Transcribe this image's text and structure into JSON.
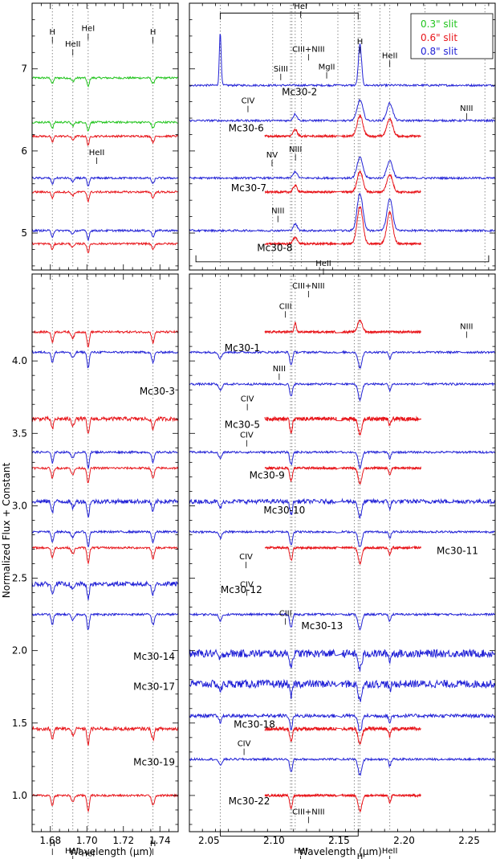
{
  "chart_data": {
    "type": "line",
    "description": "Multi-panel near-infrared spectra (normalized flux + constant vs wavelength) of Mc30 stars, two wavelength windows (H band left, K band right), upper and lower sets.",
    "shared": {
      "xlabel": "Wavelength (μm)",
      "ylabel": "Normalized Flux + Constant",
      "left_xlim": [
        1.67,
        1.75
      ],
      "right_xlim": [
        2.035,
        2.27
      ],
      "left_xticks": [
        "1.68",
        "1.70",
        "1.72",
        "1.74"
      ],
      "right_xticks": [
        "2.05",
        "2.10",
        "2.15",
        "2.20",
        "2.25"
      ],
      "upper_ylim": [
        4.55,
        7.8
      ],
      "upper_yticks": [
        "5",
        "6",
        "7"
      ],
      "lower_ylim": [
        0.75,
        4.6
      ],
      "lower_yticks": [
        "1.0",
        "1.5",
        "2.0",
        "2.5",
        "3.0",
        "3.5",
        "4.0"
      ]
    },
    "legend": [
      {
        "label": "0.3\" slit",
        "color": "#22c41e"
      },
      {
        "label": "0.6\" slit",
        "color": "#e8161b"
      },
      {
        "label": "0.8\" slit",
        "color": "#2222d6"
      }
    ],
    "line_markers_left": [
      1.6811,
      1.6923,
      1.7007,
      1.7362
    ],
    "line_markers_right": [
      2.0587,
      2.1127,
      2.1138,
      2.1163,
      2.1617,
      2.1647,
      2.1661,
      2.189
    ],
    "line_markers_right_upper_extra": [
      2.099,
      2.121,
      2.1491,
      2.1814,
      2.2161,
      2.2621
    ],
    "upper_series": [
      {
        "name": "Mc30-2",
        "color": "green",
        "level": 6.89,
        "left": true,
        "right": false
      },
      {
        "name": "Mc30-2",
        "color": "blue",
        "level": 6.8,
        "left": false,
        "right": true
      },
      {
        "name": "Mc30-6",
        "color": "green",
        "level": 6.35,
        "left": true,
        "right": false
      },
      {
        "name": "Mc30-6",
        "color": "red",
        "level": 6.18,
        "left": true,
        "right": true
      },
      {
        "name": "Mc30-6",
        "color": "blue",
        "level": 6.37,
        "left": false,
        "right": true
      },
      {
        "name": "Mc30-7",
        "color": "blue",
        "level": 5.67,
        "left": true,
        "right": true
      },
      {
        "name": "Mc30-7",
        "color": "red",
        "level": 5.5,
        "left": true,
        "right": true
      },
      {
        "name": "Mc30-8",
        "color": "blue",
        "level": 5.03,
        "left": true,
        "right": true
      },
      {
        "name": "Mc30-8",
        "color": "red",
        "level": 4.87,
        "left": true,
        "right": true
      }
    ],
    "lower_series": [
      {
        "name": "Mc30-1",
        "color": "red",
        "level": 4.2,
        "left": true,
        "right": true
      },
      {
        "name": "Mc30-1",
        "color": "blue",
        "level": 4.06,
        "left": true,
        "right": true
      },
      {
        "name": "Mc30-3",
        "color": "blue",
        "level": 3.84,
        "left": false,
        "right": true
      },
      {
        "name": "Mc30-5",
        "color": "red",
        "level": 3.6,
        "left": true,
        "right": true
      },
      {
        "name": "Mc30-9",
        "color": "blue",
        "level": 3.37,
        "left": true,
        "right": true
      },
      {
        "name": "Mc30-9",
        "color": "red",
        "level": 3.26,
        "left": true,
        "right": true
      },
      {
        "name": "Mc30-10",
        "color": "blue",
        "level": 3.03,
        "left": true,
        "right": true
      },
      {
        "name": "Mc30-11",
        "color": "blue",
        "level": 2.82,
        "left": true,
        "right": true
      },
      {
        "name": "Mc30-11",
        "color": "red",
        "level": 2.71,
        "left": true,
        "right": true
      },
      {
        "name": "Mc30-12",
        "color": "blue",
        "level": 2.46,
        "left": true,
        "right": false
      },
      {
        "name": "Mc30-13",
        "color": "blue",
        "level": 2.25,
        "left": true,
        "right": true
      },
      {
        "name": "Mc30-14",
        "color": "blue",
        "level": 1.98,
        "left": false,
        "right": true
      },
      {
        "name": "Mc30-17",
        "color": "blue",
        "level": 1.77,
        "left": false,
        "right": true
      },
      {
        "name": "Mc30-18",
        "color": "blue",
        "level": 1.55,
        "left": false,
        "right": true
      },
      {
        "name": "Mc30-18",
        "color": "red",
        "level": 1.46,
        "left": true,
        "right": true
      },
      {
        "name": "Mc30-19",
        "color": "blue",
        "level": 1.25,
        "left": false,
        "right": true
      },
      {
        "name": "Mc30-22",
        "color": "red",
        "level": 1.0,
        "left": true,
        "right": true
      }
    ],
    "star_labels": [
      {
        "text": "Mc30-2",
        "panel": "UR",
        "x": 2.106,
        "y": 6.72
      },
      {
        "text": "Mc30-6",
        "panel": "UR",
        "x": 2.065,
        "y": 6.28
      },
      {
        "text": "Mc30-7",
        "panel": "UR",
        "x": 2.067,
        "y": 5.55
      },
      {
        "text": "Mc30-8",
        "panel": "UR",
        "x": 2.087,
        "y": 4.82
      },
      {
        "text": "Mc30-1",
        "panel": "LR",
        "x": 2.062,
        "y": 4.09
      },
      {
        "text": "Mc30-3",
        "panel": "LL",
        "x": 1.745,
        "y": 3.79
      },
      {
        "text": "Mc30-5",
        "panel": "LR",
        "x": 2.062,
        "y": 3.56
      },
      {
        "text": "Mc30-9",
        "panel": "LR",
        "x": 2.081,
        "y": 3.21
      },
      {
        "text": "Mc30-10",
        "panel": "LR",
        "x": 2.092,
        "y": 2.97
      },
      {
        "text": "Mc30-11",
        "panel": "LR",
        "x": 2.225,
        "y": 2.69
      },
      {
        "text": "Mc30-12",
        "panel": "LR",
        "x": 2.059,
        "y": 2.42
      },
      {
        "text": "Mc30-13",
        "panel": "LR",
        "x": 2.121,
        "y": 2.17
      },
      {
        "text": "Mc30-14",
        "panel": "LL",
        "x": 1.745,
        "y": 1.96
      },
      {
        "text": "Mc30-17",
        "panel": "LL",
        "x": 1.745,
        "y": 1.75
      },
      {
        "text": "Mc30-18",
        "panel": "LR",
        "x": 2.069,
        "y": 1.49
      },
      {
        "text": "Mc30-19",
        "panel": "LL",
        "x": 1.745,
        "y": 1.23
      },
      {
        "text": "Mc30-22",
        "panel": "LR",
        "x": 2.065,
        "y": 0.96
      }
    ],
    "line_labels": [
      {
        "text": "H",
        "panel": "UL",
        "x": 1.6811,
        "y": 7.42
      },
      {
        "text": "HeII",
        "panel": "UL",
        "x": 1.6923,
        "y": 7.27
      },
      {
        "text": "HeI",
        "panel": "UL",
        "x": 1.7007,
        "y": 7.46
      },
      {
        "text": "H",
        "panel": "UL",
        "x": 1.7362,
        "y": 7.42
      },
      {
        "text": "HeII",
        "panel": "UL",
        "x": 1.7054,
        "y": 5.95
      },
      {
        "text": "HeI",
        "panel": "UR",
        "x": 2.1205,
        "y": 7.73
      },
      {
        "text": "SiIII",
        "panel": "UR",
        "x": 2.1052,
        "y": 6.97
      },
      {
        "text": "CIII+NIII",
        "panel": "UR",
        "x": 2.1265,
        "y": 7.21
      },
      {
        "text": "MgII",
        "panel": "UR",
        "x": 2.1405,
        "y": 6.99
      },
      {
        "text": "H",
        "panel": "UR",
        "x": 2.1661,
        "y": 7.3
      },
      {
        "text": "HeII",
        "panel": "UR",
        "x": 2.189,
        "y": 7.13
      },
      {
        "text": "CIV",
        "panel": "UR",
        "x": 2.08,
        "y": 6.58
      },
      {
        "text": "NIII",
        "panel": "UR",
        "x": 2.248,
        "y": 6.49
      },
      {
        "text": "NV",
        "panel": "UR",
        "x": 2.0985,
        "y": 5.92
      },
      {
        "text": "NIII",
        "panel": "UR",
        "x": 2.1165,
        "y": 5.99
      },
      {
        "text": "NIII",
        "panel": "UR",
        "x": 2.103,
        "y": 5.24
      },
      {
        "text": "HeII",
        "panel": "UR",
        "x": 2.138,
        "y": 4.6
      },
      {
        "text": "CIII+NIII",
        "panel": "LR",
        "x": 2.1265,
        "y": 4.5
      },
      {
        "text": "CIII",
        "panel": "LR",
        "x": 2.1088,
        "y": 4.36
      },
      {
        "text": "NIII",
        "panel": "LR",
        "x": 2.248,
        "y": 4.22
      },
      {
        "text": "NIII",
        "panel": "LR",
        "x": 2.104,
        "y": 3.93
      },
      {
        "text": "CIV",
        "panel": "LR",
        "x": 2.0795,
        "y": 3.72
      },
      {
        "text": "CIV",
        "panel": "LR",
        "x": 2.079,
        "y": 3.47
      },
      {
        "text": "CIV",
        "panel": "LR",
        "x": 2.0785,
        "y": 2.63
      },
      {
        "text": "CIV",
        "panel": "LR",
        "x": 2.079,
        "y": 2.44
      },
      {
        "text": "CIII",
        "panel": "LR",
        "x": 2.1088,
        "y": 2.24
      },
      {
        "text": "CIV",
        "panel": "LR",
        "x": 2.077,
        "y": 1.34
      },
      {
        "text": "CIII+NIII",
        "panel": "LR",
        "x": 2.1265,
        "y": 0.87
      },
      {
        "text": "H",
        "panel": "LL",
        "x": 1.6811,
        "y": 0.65
      },
      {
        "text": "HeII",
        "panel": "LL",
        "x": 1.6923,
        "y": 0.6
      },
      {
        "text": "HeI",
        "panel": "LL",
        "x": 1.7007,
        "y": 0.58
      },
      {
        "text": "H",
        "panel": "LL",
        "x": 1.7362,
        "y": 0.65
      },
      {
        "text": "HeI",
        "panel": "LR",
        "x": 2.1205,
        "y": 0.6
      },
      {
        "text": "H",
        "panel": "LR",
        "x": 2.1661,
        "y": 0.56
      },
      {
        "text": "HeII",
        "panel": "LR",
        "x": 2.189,
        "y": 0.6
      }
    ]
  }
}
